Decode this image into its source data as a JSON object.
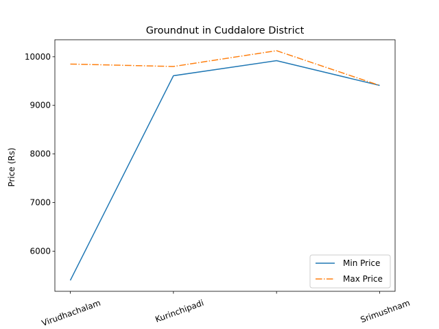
{
  "chart_data": {
    "type": "line",
    "title": "Groundnut in Cuddalore District",
    "xlabel": "",
    "ylabel": "Price (Rs)",
    "categories": [
      "Virudhachalam",
      "Kurinchipadi",
      "",
      "Srimushnam"
    ],
    "series": [
      {
        "name": "Min Price",
        "values": [
          5400,
          9610,
          9920,
          9410
        ],
        "color": "#1f77b4",
        "dash": "solid"
      },
      {
        "name": "Max Price",
        "values": [
          9850,
          9800,
          10125,
          9410
        ],
        "color": "#ff7f0e",
        "dash": "dashdot"
      }
    ],
    "ylim": [
      5175,
      10350
    ],
    "yticks": [
      6000,
      7000,
      8000,
      9000,
      10000
    ],
    "grid": false,
    "legend_position": "lower-right"
  }
}
